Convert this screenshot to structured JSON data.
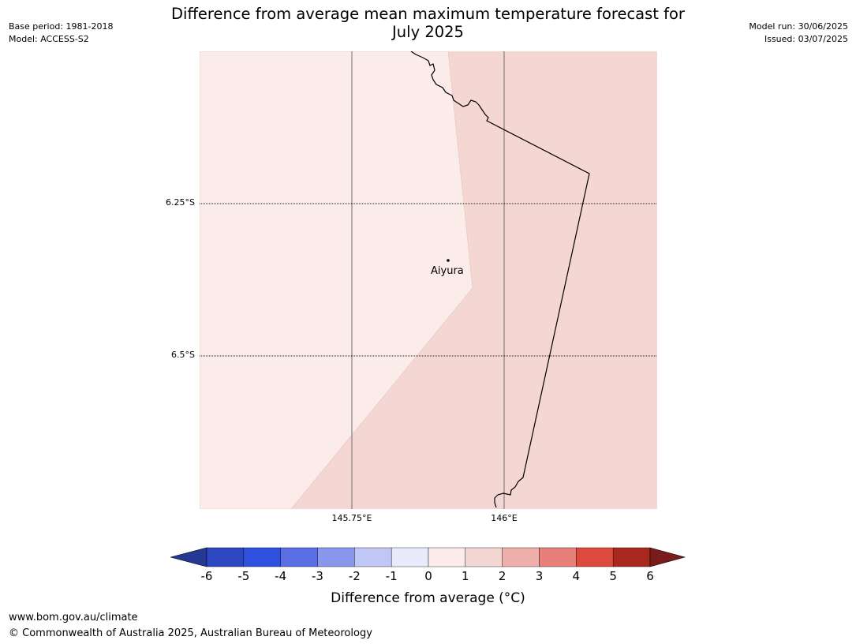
{
  "meta": {
    "base_period": "Base period: 1981-2018",
    "model": "Model: ACCESS-S2",
    "model_run": "Model run: 30/06/2025",
    "issued": "Issued: 03/07/2025"
  },
  "title_line1": "Difference from average mean maximum temperature forecast for",
  "title_line2": "July 2025",
  "map": {
    "latitude_labels": [
      "6.25°S",
      "6.5°S"
    ],
    "longitude_labels": [
      "145.75°E",
      "146°E"
    ],
    "place": "Aiyura",
    "zones": [
      {
        "range": "0 to 1",
        "color": "#fbebe9"
      },
      {
        "range": "1 to 2",
        "color": "#f4d6d3"
      }
    ]
  },
  "colorbar": {
    "ticks": [
      "-6",
      "-5",
      "-4",
      "-3",
      "-2",
      "-1",
      "0",
      "1",
      "2",
      "3",
      "4",
      "5",
      "6"
    ],
    "colors": [
      "#253894",
      "#2d47c0",
      "#3050e0",
      "#5a6fe4",
      "#8896ec",
      "#c1c7f4",
      "#e9ebfc",
      "#fbebe9",
      "#f4d6d3",
      "#eeaeaa",
      "#e68078",
      "#dc4a3e",
      "#a82820",
      "#7a1c1c"
    ],
    "label": "Difference from average (°C)"
  },
  "footer": {
    "url": "www.bom.gov.au/climate",
    "copyright": "© Commonwealth of Australia 2025, Australian Bureau of Meteorology"
  }
}
